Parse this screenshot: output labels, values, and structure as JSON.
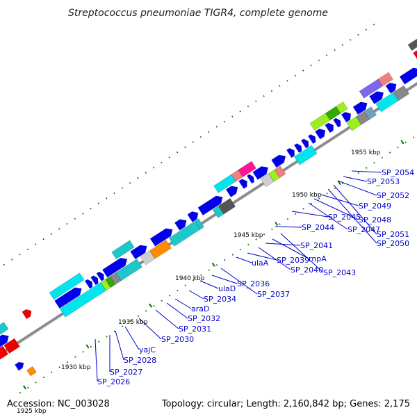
{
  "header": {
    "title": "Streptococcus pneumoniae TIGR4, complete genome"
  },
  "footer": {
    "accession": "Accession: NC_003028",
    "summary": "Topology: circular; Length: 2,160,842 bp; Genes: 2,175"
  },
  "ticks": [
    {
      "label": "1925 kbp"
    },
    {
      "label": "1930 kbp"
    },
    {
      "label": "1935 kbp"
    },
    {
      "label": "1940 kbp"
    },
    {
      "label": "1945 kbp"
    },
    {
      "label": "1950 kbp"
    },
    {
      "label": "1955 kbp"
    }
  ],
  "gene_labels": [
    {
      "text": "SP_2026"
    },
    {
      "text": "SP_2027"
    },
    {
      "text": "SP_2028"
    },
    {
      "text": "yajC"
    },
    {
      "text": "SP_2030"
    },
    {
      "text": "SP_2031"
    },
    {
      "text": "SP_2032"
    },
    {
      "text": "araD"
    },
    {
      "text": "SP_2034"
    },
    {
      "text": "ulaD"
    },
    {
      "text": "SP_2036"
    },
    {
      "text": "SP_2037"
    },
    {
      "text": "ulaA"
    },
    {
      "text": "SP_2039"
    },
    {
      "text": "SP_2040"
    },
    {
      "text": "SP_2041"
    },
    {
      "text": "rnpA"
    },
    {
      "text": "SP_2043"
    },
    {
      "text": "SP_2044"
    },
    {
      "text": "SP_2045"
    },
    {
      "text": "SP_2047"
    },
    {
      "text": "SP_2048"
    },
    {
      "text": "SP_2049"
    },
    {
      "text": "SP_2050"
    },
    {
      "text": "SP_2051"
    },
    {
      "text": "SP_2052"
    },
    {
      "text": "SP_2053"
    },
    {
      "text": "SP_2054"
    }
  ],
  "colors": {
    "forward_cds": "#0000ee",
    "backbone": "#8a8a8a",
    "tick": "#007700",
    "label": "#0000cc",
    "cyan": "#00e5ee",
    "teal": "#1fc8c8",
    "orange": "#ff8c00",
    "lime": "#9aee22",
    "green": "#33aa00",
    "magenta": "#ff1493",
    "salmon": "#f08080",
    "grey": "#888888",
    "darkgrey": "#555555",
    "lightgrey": "#cfcfcf",
    "red": "#ee0000",
    "purple": "#7b68ee",
    "steel": "#6fa0c0"
  }
}
